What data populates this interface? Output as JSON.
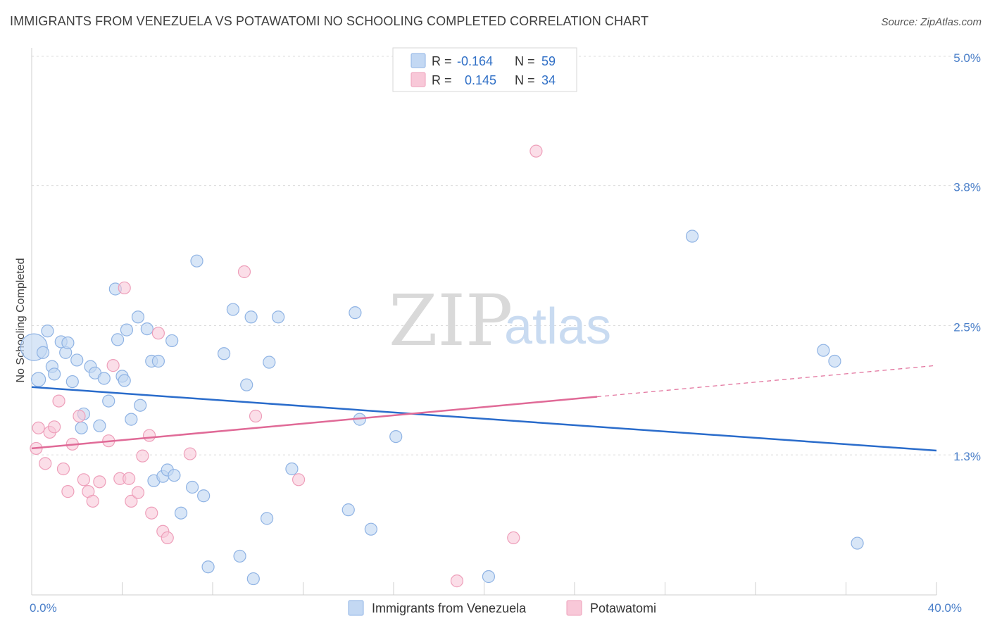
{
  "header": {
    "title": "IMMIGRANTS FROM VENEZUELA VS POTAWATOMI NO SCHOOLING COMPLETED CORRELATION CHART",
    "source": "Source: ZipAtlas.com"
  },
  "watermark": {
    "zip": "ZIP",
    "atlas": "atlas"
  },
  "legend": {
    "rows": [
      {
        "r_label": "R =",
        "r_value": "-0.164",
        "n_label": "N =",
        "n_value": "59"
      },
      {
        "r_label": "R =",
        "r_value": "0.145",
        "n_label": "N =",
        "n_value": "34"
      }
    ]
  },
  "chart_data": {
    "type": "scatter",
    "title": "IMMIGRANTS FROM VENEZUELA VS POTAWATOMI NO SCHOOLING COMPLETED CORRELATION CHART",
    "xlabel": "",
    "ylabel": "No Schooling Completed",
    "xlim": [
      0,
      40
    ],
    "ylim": [
      0,
      5.0
    ],
    "x_tick_labels": [
      {
        "value": 0,
        "label": "0.0%"
      },
      {
        "value": 40,
        "label": "40.0%"
      }
    ],
    "y_tick_labels": [
      {
        "value": 1.3,
        "label": "1.3%"
      },
      {
        "value": 2.5,
        "label": "2.5%"
      },
      {
        "value": 3.8,
        "label": "3.8%"
      },
      {
        "value": 5.0,
        "label": "5.0%"
      }
    ],
    "grid": true,
    "legend_position": "top-center",
    "colors": {
      "venezuela_fill": "#c3d8f3",
      "venezuela_stroke": "#8fb3e4",
      "venezuela_line": "#2a6ccb",
      "potawatomi_fill": "#f8c8d8",
      "potawatomi_stroke": "#ee9fba",
      "potawatomi_line": "#e06a97"
    },
    "series": [
      {
        "name": "Immigrants from Venezuela",
        "r": -0.164,
        "n": 59,
        "trend": {
          "x": [
            0,
            40
          ],
          "y": [
            1.93,
            1.34
          ]
        },
        "points": [
          [
            0.1,
            2.3
          ],
          [
            0.3,
            2.0
          ],
          [
            0.5,
            2.25
          ],
          [
            0.7,
            2.45
          ],
          [
            0.9,
            2.12
          ],
          [
            1.0,
            2.05
          ],
          [
            1.3,
            2.35
          ],
          [
            1.5,
            2.25
          ],
          [
            1.6,
            2.34
          ],
          [
            1.8,
            1.98
          ],
          [
            2.0,
            2.18
          ],
          [
            2.2,
            1.55
          ],
          [
            2.3,
            1.68
          ],
          [
            2.6,
            2.12
          ],
          [
            2.8,
            2.06
          ],
          [
            3.0,
            1.57
          ],
          [
            3.2,
            2.01
          ],
          [
            3.4,
            1.8
          ],
          [
            3.8,
            2.37
          ],
          [
            3.7,
            2.84
          ],
          [
            4.2,
            2.46
          ],
          [
            4.0,
            2.03
          ],
          [
            4.4,
            1.63
          ],
          [
            4.8,
            1.76
          ],
          [
            4.7,
            2.58
          ],
          [
            5.1,
            2.47
          ],
          [
            5.4,
            1.06
          ],
          [
            5.3,
            2.17
          ],
          [
            5.6,
            2.17
          ],
          [
            5.8,
            1.1
          ],
          [
            6.0,
            1.16
          ],
          [
            6.3,
            1.11
          ],
          [
            6.2,
            2.36
          ],
          [
            6.6,
            0.76
          ],
          [
            7.1,
            1.0
          ],
          [
            7.3,
            3.1
          ],
          [
            7.6,
            0.92
          ],
          [
            7.8,
            0.26
          ],
          [
            8.5,
            2.24
          ],
          [
            8.9,
            2.65
          ],
          [
            9.2,
            0.36
          ],
          [
            9.5,
            1.95
          ],
          [
            9.7,
            2.58
          ],
          [
            9.8,
            0.15
          ],
          [
            10.4,
            0.71
          ],
          [
            10.5,
            2.16
          ],
          [
            10.9,
            2.58
          ],
          [
            11.5,
            1.17
          ],
          [
            14.0,
            0.79
          ],
          [
            14.3,
            2.62
          ],
          [
            14.5,
            1.63
          ],
          [
            15.0,
            0.61
          ],
          [
            16.1,
            1.47
          ],
          [
            20.2,
            0.17
          ],
          [
            29.2,
            3.33
          ],
          [
            35.0,
            2.27
          ],
          [
            35.5,
            2.17
          ],
          [
            36.5,
            0.48
          ],
          [
            4.1,
            1.99
          ]
        ]
      },
      {
        "name": "Potawatomi",
        "r": 0.145,
        "n": 34,
        "trend_solid": {
          "x": [
            0,
            25
          ],
          "y": [
            1.36,
            1.84
          ]
        },
        "trend_dashed": {
          "x": [
            25,
            40
          ],
          "y": [
            1.84,
            2.13
          ]
        },
        "points": [
          [
            0.3,
            1.55
          ],
          [
            0.6,
            1.22
          ],
          [
            0.8,
            1.51
          ],
          [
            1.0,
            1.56
          ],
          [
            1.2,
            1.8
          ],
          [
            1.4,
            1.17
          ],
          [
            1.6,
            0.96
          ],
          [
            1.8,
            1.4
          ],
          [
            2.1,
            1.66
          ],
          [
            2.3,
            1.07
          ],
          [
            2.5,
            0.96
          ],
          [
            2.7,
            0.87
          ],
          [
            3.0,
            1.05
          ],
          [
            3.4,
            1.43
          ],
          [
            3.6,
            2.13
          ],
          [
            3.9,
            1.08
          ],
          [
            4.1,
            2.85
          ],
          [
            4.3,
            1.08
          ],
          [
            4.4,
            0.87
          ],
          [
            4.7,
            0.95
          ],
          [
            4.9,
            1.29
          ],
          [
            5.2,
            1.48
          ],
          [
            5.3,
            0.76
          ],
          [
            5.6,
            2.43
          ],
          [
            5.8,
            0.59
          ],
          [
            6.0,
            0.53
          ],
          [
            7.0,
            1.31
          ],
          [
            9.4,
            3.0
          ],
          [
            9.9,
            1.66
          ],
          [
            11.8,
            1.07
          ],
          [
            18.8,
            0.13
          ],
          [
            21.3,
            0.53
          ],
          [
            22.3,
            4.12
          ],
          [
            0.2,
            1.36
          ]
        ]
      }
    ]
  },
  "bottom_legend": {
    "items": [
      {
        "label": "Immigrants from Venezuela"
      },
      {
        "label": "Potawatomi"
      }
    ]
  }
}
